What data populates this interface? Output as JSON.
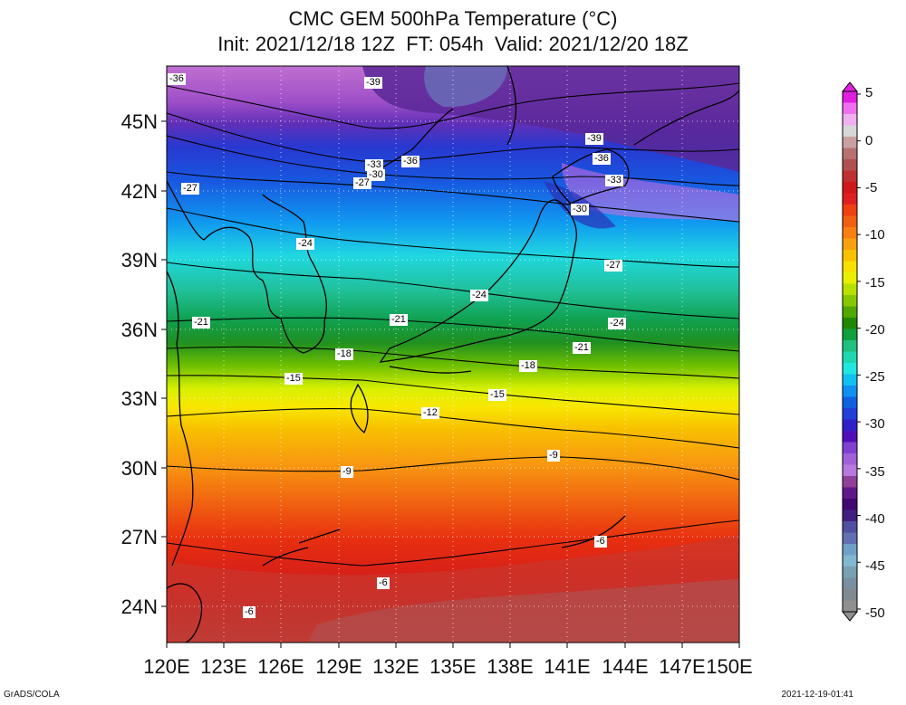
{
  "title": {
    "line1": "CMC GEM 500hPa Temperature (°C)",
    "line2": "Init: 2021/12/18 12Z  FT: 054h  Valid: 2021/12/20 18Z"
  },
  "axes": {
    "lat_labels": [
      "45N",
      "42N",
      "39N",
      "36N",
      "33N",
      "30N",
      "27N",
      "24N"
    ],
    "lon_labels": [
      "120E",
      "123E",
      "126E",
      "129E",
      "132E",
      "135E",
      "138E",
      "141E",
      "144E",
      "147E",
      "150E"
    ]
  },
  "colorbar": {
    "labels": [
      "5",
      "0",
      "-5",
      "-10",
      "-15",
      "-20",
      "-25",
      "-30",
      "-35",
      "-40",
      "-45",
      "-50"
    ],
    "colors_top_to_bottom": [
      "#e020e0",
      "#f070f0",
      "#f0b0f0",
      "#d8d8d8",
      "#c8a0a0",
      "#b87070",
      "#b05050",
      "#c03030",
      "#d01818",
      "#e02020",
      "#f04010",
      "#f06010",
      "#f88010",
      "#f8a010",
      "#f8c000",
      "#f8e000",
      "#e8f000",
      "#b8e000",
      "#88c800",
      "#50a800",
      "#208800",
      "#10a040",
      "#20c080",
      "#20d8b0",
      "#20e8e0",
      "#10c0f0",
      "#1090f0",
      "#1060e0",
      "#2040d8",
      "#3020c8",
      "#5010b8",
      "#8040d0",
      "#a060d8",
      "#b878e0",
      "#904098",
      "#601888",
      "#400870",
      "#402080",
      "#5050a0",
      "#6070b0",
      "#70a0c8",
      "#80b8d0",
      "#78a0b0",
      "#7890a0",
      "#808890",
      "#909090"
    ]
  },
  "contour_labels": [
    {
      "text": "-36"
    },
    {
      "text": "-39"
    },
    {
      "text": "-39"
    },
    {
      "text": "-36"
    },
    {
      "text": "-36"
    },
    {
      "text": "-33"
    },
    {
      "text": "-30"
    },
    {
      "text": "-33"
    },
    {
      "text": "-27"
    },
    {
      "text": "-27"
    },
    {
      "text": "-30"
    },
    {
      "text": "-24"
    },
    {
      "text": "-27"
    },
    {
      "text": "-24"
    },
    {
      "text": "-21"
    },
    {
      "text": "-21"
    },
    {
      "text": "-24"
    },
    {
      "text": "-21"
    },
    {
      "text": "-18"
    },
    {
      "text": "-18"
    },
    {
      "text": "-15"
    },
    {
      "text": "-15"
    },
    {
      "text": "-12"
    },
    {
      "text": "-9"
    },
    {
      "text": "-9"
    },
    {
      "text": "-6"
    },
    {
      "text": "-6"
    },
    {
      "text": "-6"
    }
  ],
  "footer": {
    "left": "GrADS/COLA",
    "right": "2021-12-19-01:41"
  }
}
